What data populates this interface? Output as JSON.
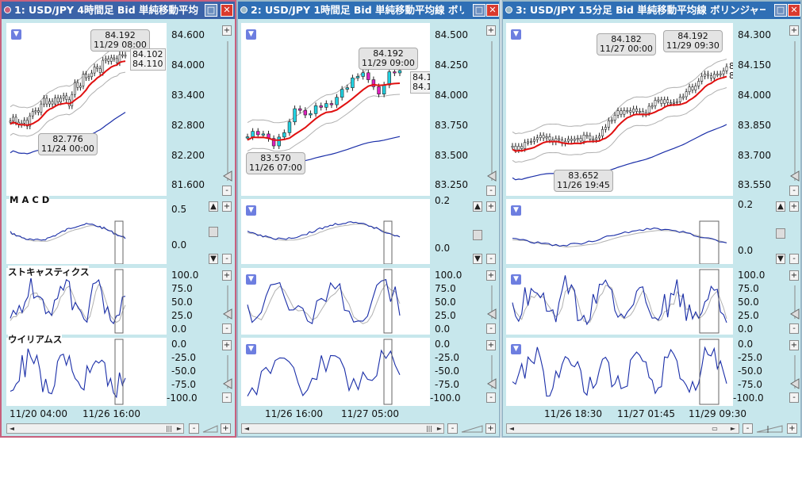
{
  "windows": [
    {
      "title": "1: USD/JPY 4時間足 Bid 単純移動平均",
      "main_ticks": [
        "84.600",
        "84.000",
        "83.400",
        "82.800",
        "82.200",
        "81.600"
      ],
      "bubble_high": [
        "84.192",
        "11/29 08:00"
      ],
      "bubble_low": [
        "82.776",
        "11/24 00:00"
      ],
      "price_box": [
        "84.102",
        "84.110"
      ],
      "macd_ticks": [
        "0.5",
        "0.0"
      ],
      "stoch_ticks": [
        "100.0",
        "75.0",
        "50.0",
        "25.0",
        "0.0"
      ],
      "will_ticks": [
        "0.0",
        "-25.0",
        "-50.0",
        "-75.0",
        "-100.0"
      ],
      "x_labels": [
        "11/20 04:00",
        "11/26 16:00"
      ]
    },
    {
      "title": "2: USD/JPY 1時間足 Bid 単純移動平均線 ボリ",
      "main_ticks": [
        "84.500",
        "84.250",
        "84.000",
        "83.750",
        "83.500",
        "83.250"
      ],
      "bubble_high": [
        "84.192",
        "11/29 09:00"
      ],
      "bubble_low": [
        "83.570",
        "11/26 07:00"
      ],
      "price_box": [
        "84.1",
        "84.1"
      ],
      "macd_ticks": [
        "0.2",
        "0.0"
      ],
      "stoch_ticks": [
        "100.0",
        "75.0",
        "50.0",
        "25.0",
        "0.0"
      ],
      "will_ticks": [
        "0.0",
        "-25.0",
        "-50.0",
        "-75.0",
        "-100.0"
      ],
      "x_labels": [
        "11/26 16:00",
        "11/27 05:00"
      ]
    },
    {
      "title": "3: USD/JPY 15分足 Bid 単純移動平均線 ボリンジャー…",
      "main_ticks": [
        "84.300",
        "84.150",
        "84.000",
        "83.850",
        "83.700",
        "83.550"
      ],
      "bubble_high": [
        "84.182",
        "11/27 00:00"
      ],
      "bubble_high2": [
        "84.192",
        "11/29 09:30"
      ],
      "bubble_low": [
        "83.652",
        "11/26 19:45"
      ],
      "price_box": [
        "8",
        "8"
      ],
      "macd_ticks": [
        "0.2",
        "0.0"
      ],
      "stoch_ticks": [
        "100.0",
        "75.0",
        "50.0",
        "25.0",
        "0.0"
      ],
      "will_ticks": [
        "0.0",
        "-25.0",
        "-50.0",
        "-75.0",
        "-100.0"
      ],
      "x_labels": [
        "11/26 18:30",
        "11/27 01:45",
        "11/29 09:30"
      ]
    }
  ],
  "labels": {
    "macd": "M A C D",
    "stoch": "ストキャスティクス",
    "will": "ウイリアムス"
  },
  "glyphs": {
    "dropdown": "▼",
    "plus": "+",
    "minus": "-",
    "left": "◄",
    "right": "►",
    "up": "▲",
    "down": "▼",
    "close": "✕",
    "max": "□",
    "zoom_slider": "▭",
    "grip": "|||"
  },
  "colors": {
    "ma_red": "#e01010",
    "ma_blue": "#1a2ea8",
    "bollinger": "#b0b0b0",
    "candle_up": "#20d0e0",
    "candle_down": "#e020c0"
  }
}
